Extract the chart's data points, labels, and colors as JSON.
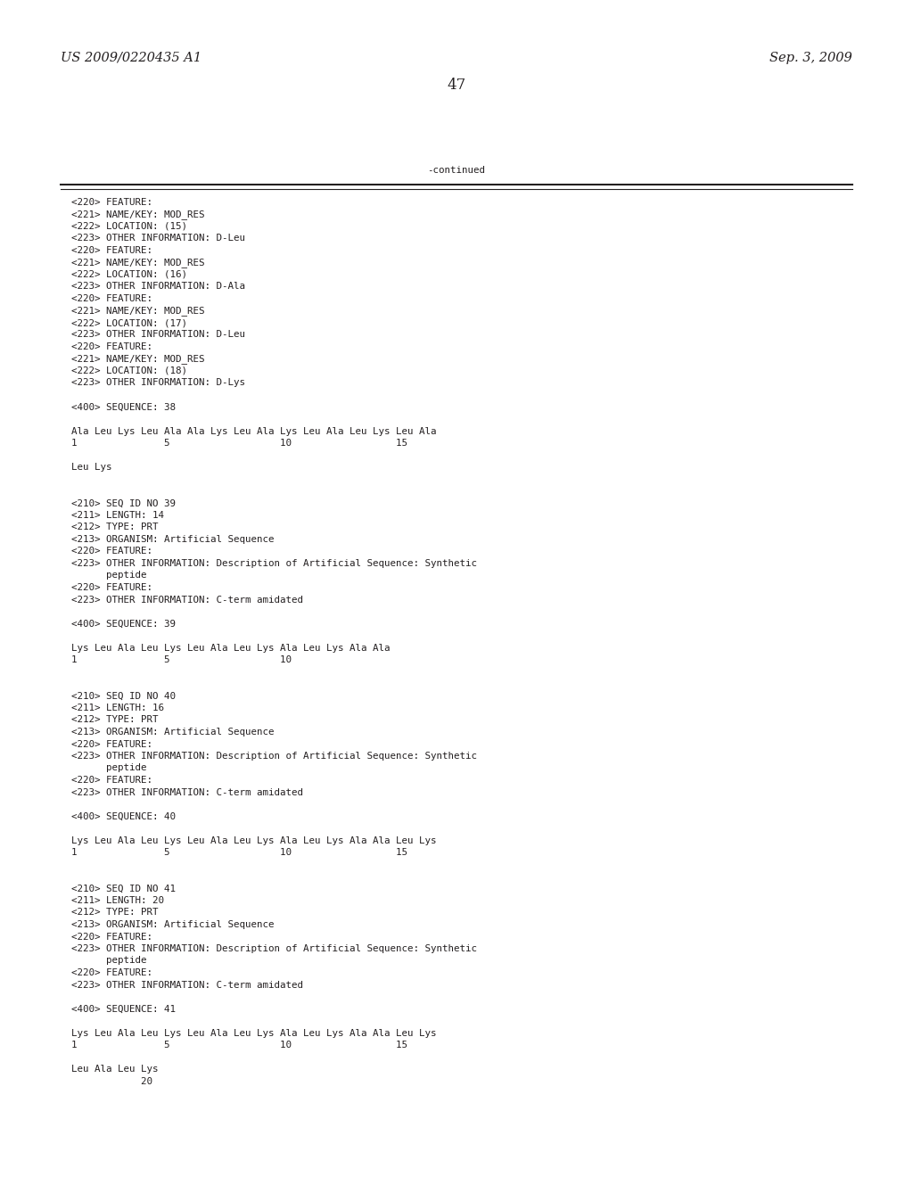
{
  "header_left": "US 2009/0220435 A1",
  "header_right": "Sep. 3, 2009",
  "page_number": "47",
  "continued_label": "-continued",
  "background_color": "#ffffff",
  "text_color": "#231f20",
  "font_size_header": 10.5,
  "font_size_body": 7.8,
  "font_size_page": 12,
  "content_lines": [
    "<220> FEATURE:",
    "<221> NAME/KEY: MOD_RES",
    "<222> LOCATION: (15)",
    "<223> OTHER INFORMATION: D-Leu",
    "<220> FEATURE:",
    "<221> NAME/KEY: MOD_RES",
    "<222> LOCATION: (16)",
    "<223> OTHER INFORMATION: D-Ala",
    "<220> FEATURE:",
    "<221> NAME/KEY: MOD_RES",
    "<222> LOCATION: (17)",
    "<223> OTHER INFORMATION: D-Leu",
    "<220> FEATURE:",
    "<221> NAME/KEY: MOD_RES",
    "<222> LOCATION: (18)",
    "<223> OTHER INFORMATION: D-Lys",
    "",
    "<400> SEQUENCE: 38",
    "",
    "Ala Leu Lys Leu Ala Ala Lys Leu Ala Lys Leu Ala Leu Lys Leu Ala",
    "1               5                   10                  15",
    "",
    "Leu Lys",
    "",
    "",
    "<210> SEQ ID NO 39",
    "<211> LENGTH: 14",
    "<212> TYPE: PRT",
    "<213> ORGANISM: Artificial Sequence",
    "<220> FEATURE:",
    "<223> OTHER INFORMATION: Description of Artificial Sequence: Synthetic",
    "      peptide",
    "<220> FEATURE:",
    "<223> OTHER INFORMATION: C-term amidated",
    "",
    "<400> SEQUENCE: 39",
    "",
    "Lys Leu Ala Leu Lys Leu Ala Leu Lys Ala Leu Lys Ala Ala",
    "1               5                   10",
    "",
    "",
    "<210> SEQ ID NO 40",
    "<211> LENGTH: 16",
    "<212> TYPE: PRT",
    "<213> ORGANISM: Artificial Sequence",
    "<220> FEATURE:",
    "<223> OTHER INFORMATION: Description of Artificial Sequence: Synthetic",
    "      peptide",
    "<220> FEATURE:",
    "<223> OTHER INFORMATION: C-term amidated",
    "",
    "<400> SEQUENCE: 40",
    "",
    "Lys Leu Ala Leu Lys Leu Ala Leu Lys Ala Leu Lys Ala Ala Leu Lys",
    "1               5                   10                  15",
    "",
    "",
    "<210> SEQ ID NO 41",
    "<211> LENGTH: 20",
    "<212> TYPE: PRT",
    "<213> ORGANISM: Artificial Sequence",
    "<220> FEATURE:",
    "<223> OTHER INFORMATION: Description of Artificial Sequence: Synthetic",
    "      peptide",
    "<220> FEATURE:",
    "<223> OTHER INFORMATION: C-term amidated",
    "",
    "<400> SEQUENCE: 41",
    "",
    "Lys Leu Ala Leu Lys Leu Ala Leu Lys Ala Leu Lys Ala Ala Leu Lys",
    "1               5                   10                  15",
    "",
    "Leu Ala Leu Lys",
    "            20"
  ]
}
